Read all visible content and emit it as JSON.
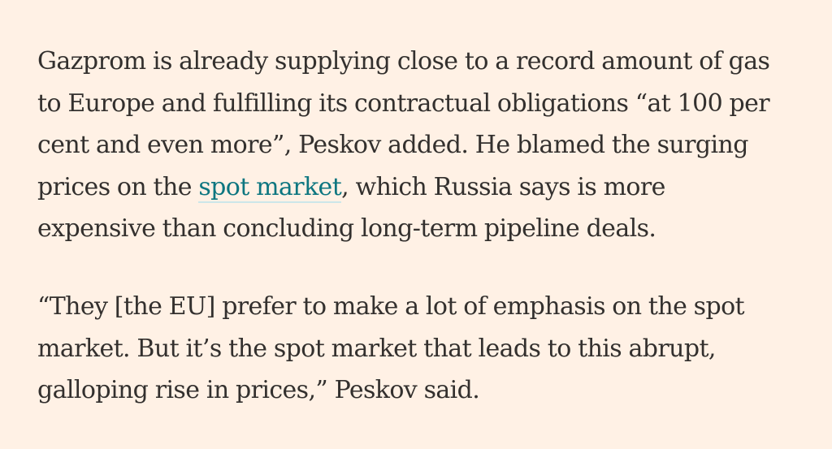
{
  "article": {
    "paragraphs": [
      {
        "lines": [
          "Gazprom is already supplying close to a record amount of gas",
          "to Europe and fulfilling its contractual obligations “at 100 per",
          "cent and even more”, Peskov added. He blamed the surging",
          {
            "before": "prices on the ",
            "link": "spot market",
            "after": ", which Russia says is more"
          },
          "expensive than concluding long-term pipeline deals."
        ]
      },
      {
        "lines": [
          "“They [the EU] prefer to make a lot of emphasis on the spot",
          "market. But it’s the spot market that leads to this abrupt,",
          "galloping rise in prices,” Peskov said."
        ]
      }
    ]
  },
  "colors": {
    "background": "#FFF1E5",
    "text": "#33302E",
    "link": "#0D7680"
  }
}
